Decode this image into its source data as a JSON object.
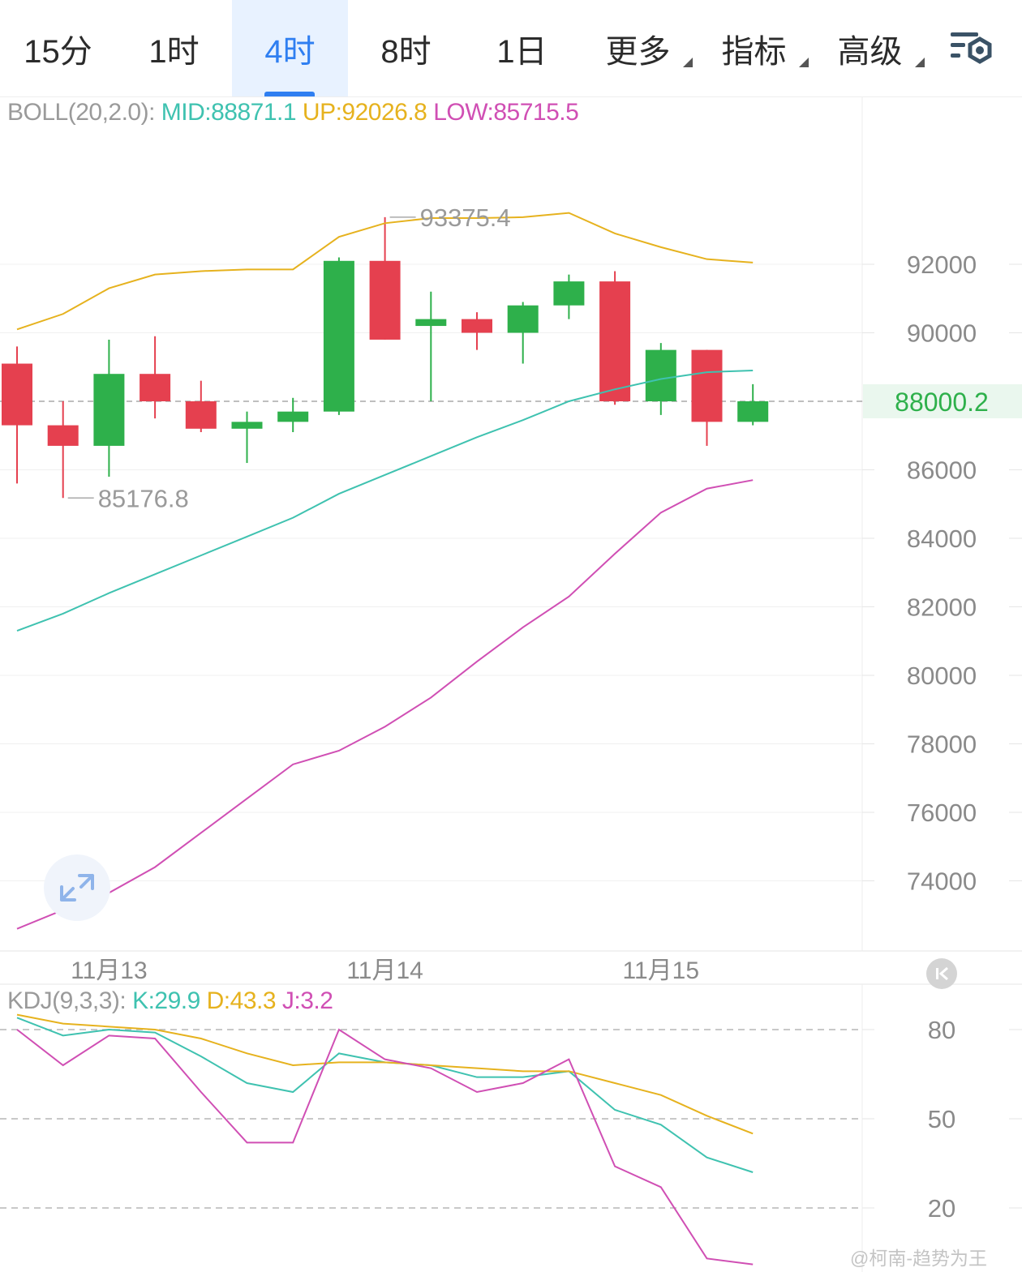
{
  "tabs": [
    {
      "label": "15分",
      "active": false,
      "dropdown": false
    },
    {
      "label": "1时",
      "active": false,
      "dropdown": false
    },
    {
      "label": "4时",
      "active": true,
      "dropdown": false
    },
    {
      "label": "8时",
      "active": false,
      "dropdown": false
    },
    {
      "label": "1日",
      "active": false,
      "dropdown": false
    },
    {
      "label": "更多",
      "active": false,
      "dropdown": true
    },
    {
      "label": "指标",
      "active": false,
      "dropdown": true
    },
    {
      "label": "高级",
      "active": false,
      "dropdown": true
    }
  ],
  "settings_icon": "chart-settings-icon",
  "expand_icon": "expand-arrows-icon",
  "scroll_start_icon": "scroll-to-start-icon",
  "boll_legend": {
    "name": "BOLL(20,2.0):",
    "mid": "MID:88871.1",
    "up": "UP:92026.8",
    "low": "LOW:85715.5"
  },
  "kdj_legend": {
    "name": "KDJ(9,3,3):",
    "k": "K:29.9",
    "d": "D:43.3",
    "j": "J:3.2"
  },
  "current_price_label": "88000.2",
  "high_label": "93375.4",
  "low_label": "85176.8",
  "watermark": "@柯南-趋势为王",
  "colors": {
    "up_candle": "#2eb04b",
    "down_candle": "#e5404f",
    "boll_mid": "#3fc2b0",
    "boll_up": "#e6b21e",
    "boll_low": "#d04fb4",
    "kdj_k": "#3fc2b0",
    "kdj_d": "#e6b21e",
    "kdj_j": "#d04fb4",
    "active_tab": "#2f7ff1",
    "current_price": "#2eb04b"
  },
  "chart_data": [
    {
      "type": "candlestick",
      "timeframe": "4时",
      "x_ticks": [
        "11月13",
        "11月14",
        "11月15"
      ],
      "x_tick_candle_index": [
        2,
        8,
        14
      ],
      "y_ticks": [
        92000,
        90000,
        88000,
        86000,
        84000,
        82000,
        80000,
        78000,
        76000,
        74000
      ],
      "y_tick_labels": [
        "92000",
        "90000",
        "88000",
        "86000",
        "84000",
        "82000",
        "80000",
        "78000",
        "76000",
        "74000"
      ],
      "ylim": [
        72000,
        96000
      ],
      "grid": true,
      "current_price": 88000.2,
      "high_marker": {
        "value": 93375.4,
        "candle_index": 8
      },
      "low_marker": {
        "value": 85176.8,
        "candle_index": 1
      },
      "candles": [
        {
          "o": 89100,
          "h": 89600,
          "l": 85600,
          "c": 87300
        },
        {
          "o": 87300,
          "h": 88000,
          "l": 85176.8,
          "c": 86700
        },
        {
          "o": 86700,
          "h": 89800,
          "l": 85800,
          "c": 88800
        },
        {
          "o": 88800,
          "h": 89900,
          "l": 87500,
          "c": 88000
        },
        {
          "o": 88000,
          "h": 88600,
          "l": 87100,
          "c": 87200
        },
        {
          "o": 87200,
          "h": 87700,
          "l": 86200,
          "c": 87400
        },
        {
          "o": 87400,
          "h": 88100,
          "l": 87100,
          "c": 87700
        },
        {
          "o": 87700,
          "h": 92200,
          "l": 87600,
          "c": 92100
        },
        {
          "o": 92100,
          "h": 93375.4,
          "l": 89800,
          "c": 89800
        },
        {
          "o": 90200,
          "h": 91200,
          "l": 88000,
          "c": 90400
        },
        {
          "o": 90400,
          "h": 90600,
          "l": 89500,
          "c": 90000
        },
        {
          "o": 90000,
          "h": 90900,
          "l": 89100,
          "c": 90800
        },
        {
          "o": 90800,
          "h": 91700,
          "l": 90400,
          "c": 91500
        },
        {
          "o": 91500,
          "h": 91800,
          "l": 87900,
          "c": 88000
        },
        {
          "o": 88000,
          "h": 89700,
          "l": 87600,
          "c": 89500
        },
        {
          "o": 89500,
          "h": 89500,
          "l": 86700,
          "c": 87400
        },
        {
          "o": 87400,
          "h": 88500,
          "l": 87300,
          "c": 88000.2
        }
      ],
      "series": [
        {
          "name": "UP",
          "values": [
            90100,
            90550,
            91300,
            91700,
            91800,
            91850,
            91850,
            92800,
            93200,
            93350,
            93350,
            93375,
            93500,
            92900,
            92500,
            92150,
            92050
          ]
        },
        {
          "name": "MID",
          "values": [
            81300,
            81800,
            82400,
            82950,
            83500,
            84050,
            84600,
            85300,
            85850,
            86400,
            86950,
            87450,
            88000,
            88350,
            88650,
            88850,
            88900
          ]
        },
        {
          "name": "LOW",
          "values": [
            72600,
            73150,
            73650,
            74400,
            75400,
            76400,
            77400,
            77800,
            78500,
            79350,
            80400,
            81400,
            82300,
            83550,
            84750,
            85450,
            85700
          ]
        }
      ]
    },
    {
      "type": "line",
      "title": "KDJ(9,3,3)",
      "y_ticks": [
        80,
        50,
        20
      ],
      "y_tick_labels": [
        "80",
        "50",
        "20"
      ],
      "ylim": [
        5,
        92
      ],
      "grid": true,
      "series": [
        {
          "name": "K",
          "values": [
            84,
            78,
            80,
            79,
            71,
            62,
            59,
            72,
            69,
            68,
            64,
            64,
            66,
            53,
            48,
            37,
            32
          ]
        },
        {
          "name": "D",
          "values": [
            85,
            82,
            81,
            80,
            77,
            72,
            68,
            69,
            69,
            68,
            67,
            66,
            66,
            62,
            58,
            51,
            45
          ]
        },
        {
          "name": "J",
          "values": [
            80,
            68,
            78,
            77,
            59,
            42,
            42,
            80,
            70,
            67,
            59,
            62,
            70,
            34,
            27,
            3,
            1
          ]
        }
      ]
    }
  ]
}
